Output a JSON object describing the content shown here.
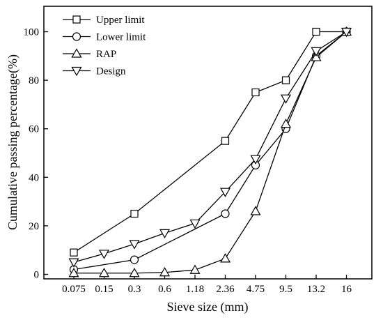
{
  "chart_data": {
    "type": "line",
    "xlabel": "Sieve size (mm)",
    "ylabel": "Cumulative passing percentage(%)",
    "categories": [
      "0.075",
      "0.15",
      "0.3",
      "0.6",
      "1.18",
      "2.36",
      "4.75",
      "9.5",
      "13.2",
      "16"
    ],
    "ylim": [
      0,
      100
    ],
    "yticks": [
      0,
      20,
      40,
      60,
      80,
      100
    ],
    "legend_position": "top-left",
    "series": [
      {
        "name": "Upper limit",
        "marker": "square",
        "x": [
          "0.075",
          "0.3",
          "2.36",
          "4.75",
          "9.5",
          "13.2",
          "16"
        ],
        "values": [
          9,
          25,
          55,
          75,
          80,
          100,
          100
        ]
      },
      {
        "name": "Lower limit",
        "marker": "circle",
        "x": [
          "0.075",
          "0.3",
          "2.36",
          "4.75",
          "9.5",
          "13.2",
          "16"
        ],
        "values": [
          2,
          6,
          25,
          45,
          60,
          90,
          100
        ]
      },
      {
        "name": "RAP",
        "marker": "triangle-up",
        "x": [
          "0.075",
          "0.15",
          "0.3",
          "0.6",
          "1.18",
          "2.36",
          "4.75",
          "9.5",
          "13.2",
          "16"
        ],
        "values": [
          0.5,
          0.5,
          0.5,
          0.8,
          1.8,
          6.5,
          26,
          62,
          89.5,
          100
        ]
      },
      {
        "name": "Design",
        "marker": "triangle-down",
        "x": [
          "0.075",
          "0.15",
          "0.3",
          "0.6",
          "1.18",
          "2.36",
          "4.75",
          "9.5",
          "13.2",
          "16"
        ],
        "values": [
          5,
          8.5,
          12.5,
          17,
          21,
          34,
          47.5,
          72.5,
          92,
          100
        ]
      }
    ]
  }
}
